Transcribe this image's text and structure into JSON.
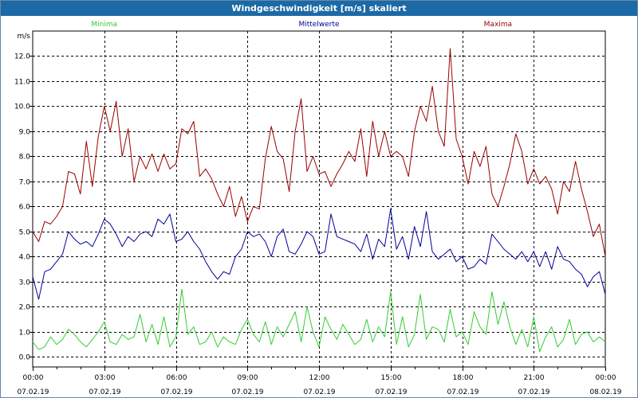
{
  "window": {
    "title": "Windgeschwindigkeit [m/s] skaliert"
  },
  "chart_data": {
    "type": "line",
    "title": "Windgeschwindigkeit [m/s] skaliert",
    "ylabel": "m/s",
    "xlabel": "",
    "ylim": [
      -0.4,
      13.0
    ],
    "xlim": [
      0,
      24
    ],
    "y_ticks": [
      0.0,
      1.0,
      2.0,
      3.0,
      4.0,
      5.0,
      6.0,
      7.0,
      8.0,
      9.0,
      10.0,
      11.0,
      12.0
    ],
    "y_tick_labels": [
      "0.0",
      "1.0",
      "2.0",
      "3.0",
      "4.0",
      "5.0",
      "6.0",
      "7.0",
      "8.0",
      "9.0",
      "10.0",
      "11.0",
      "12.0"
    ],
    "x_ticks": [
      0,
      3,
      6,
      9,
      12,
      15,
      18,
      21,
      24
    ],
    "x_tick_times": [
      "00:00",
      "03:00",
      "06:00",
      "09:00",
      "12:00",
      "15:00",
      "18:00",
      "21:00",
      "00:00"
    ],
    "x_tick_dates": [
      "07.02.19",
      "07.02.19",
      "07.02.19",
      "07.02.19",
      "07.02.19",
      "07.02.19",
      "07.02.19",
      "07.02.19",
      "08.02.19"
    ],
    "grid": true,
    "legend_position": "top",
    "series": [
      {
        "name": "Minima",
        "color": "#33cc33",
        "x": [
          0.0,
          0.25,
          0.5,
          0.75,
          1.0,
          1.25,
          1.5,
          1.75,
          2.0,
          2.25,
          2.5,
          2.75,
          3.0,
          3.25,
          3.5,
          3.75,
          4.0,
          4.25,
          4.5,
          4.75,
          5.0,
          5.25,
          5.5,
          5.75,
          6.0,
          6.25,
          6.5,
          6.75,
          7.0,
          7.25,
          7.5,
          7.75,
          8.0,
          8.25,
          8.5,
          8.75,
          9.0,
          9.25,
          9.5,
          9.75,
          10.0,
          10.25,
          10.5,
          10.75,
          11.0,
          11.25,
          11.5,
          11.75,
          12.0,
          12.25,
          12.5,
          12.75,
          13.0,
          13.25,
          13.5,
          13.75,
          14.0,
          14.25,
          14.5,
          14.75,
          15.0,
          15.25,
          15.5,
          15.75,
          16.0,
          16.25,
          16.5,
          16.75,
          17.0,
          17.25,
          17.5,
          17.75,
          18.0,
          18.25,
          18.5,
          18.75,
          19.0,
          19.25,
          19.5,
          19.75,
          20.0,
          20.25,
          20.5,
          20.75,
          21.0,
          21.25,
          21.5,
          21.75,
          22.0,
          22.25,
          22.5,
          22.75,
          23.0,
          23.25,
          23.5,
          23.75,
          24.0
        ],
        "values": [
          0.6,
          0.3,
          0.4,
          0.8,
          0.5,
          0.7,
          1.1,
          0.9,
          0.6,
          0.4,
          0.7,
          1.0,
          1.4,
          0.6,
          0.5,
          0.9,
          0.7,
          0.8,
          1.7,
          0.6,
          1.3,
          0.5,
          1.6,
          0.4,
          0.8,
          2.7,
          0.9,
          1.2,
          0.5,
          0.6,
          1.0,
          0.4,
          0.8,
          0.6,
          0.5,
          1.1,
          1.5,
          0.9,
          0.6,
          1.4,
          0.5,
          1.2,
          0.8,
          1.3,
          1.8,
          0.6,
          2.0,
          1.0,
          0.4,
          1.6,
          1.1,
          0.7,
          1.3,
          0.9,
          0.5,
          0.7,
          1.5,
          0.6,
          1.2,
          0.8,
          2.6,
          0.5,
          1.6,
          0.4,
          0.9,
          2.5,
          0.7,
          1.2,
          1.1,
          0.6,
          1.9,
          0.8,
          1.0,
          0.5,
          1.8,
          1.2,
          0.9,
          2.6,
          1.3,
          2.2,
          1.2,
          0.5,
          1.1,
          0.4,
          1.6,
          0.2,
          0.8,
          1.2,
          0.4,
          0.7,
          1.5,
          0.5,
          0.9,
          1.0,
          0.6,
          0.8,
          0.6
        ]
      },
      {
        "name": "Mittelwerte",
        "color": "#000099",
        "x": [
          0.0,
          0.25,
          0.5,
          0.75,
          1.0,
          1.25,
          1.5,
          1.75,
          2.0,
          2.25,
          2.5,
          2.75,
          3.0,
          3.25,
          3.5,
          3.75,
          4.0,
          4.25,
          4.5,
          4.75,
          5.0,
          5.25,
          5.5,
          5.75,
          6.0,
          6.25,
          6.5,
          6.75,
          7.0,
          7.25,
          7.5,
          7.75,
          8.0,
          8.25,
          8.5,
          8.75,
          9.0,
          9.25,
          9.5,
          9.75,
          10.0,
          10.25,
          10.5,
          10.75,
          11.0,
          11.25,
          11.5,
          11.75,
          12.0,
          12.25,
          12.5,
          12.75,
          13.0,
          13.25,
          13.5,
          13.75,
          14.0,
          14.25,
          14.5,
          14.75,
          15.0,
          15.25,
          15.5,
          15.75,
          16.0,
          16.25,
          16.5,
          16.75,
          17.0,
          17.25,
          17.5,
          17.75,
          18.0,
          18.25,
          18.5,
          18.75,
          19.0,
          19.25,
          19.5,
          19.75,
          20.0,
          20.25,
          20.5,
          20.75,
          21.0,
          21.25,
          21.5,
          21.75,
          22.0,
          22.25,
          22.5,
          22.75,
          23.0,
          23.25,
          23.5,
          23.75,
          24.0
        ],
        "values": [
          3.2,
          2.3,
          3.4,
          3.5,
          3.8,
          4.1,
          5.0,
          4.7,
          4.5,
          4.6,
          4.4,
          4.9,
          5.5,
          5.3,
          4.9,
          4.4,
          4.8,
          4.6,
          4.9,
          5.0,
          4.8,
          5.5,
          5.3,
          5.7,
          4.6,
          4.7,
          5.0,
          4.6,
          4.3,
          3.8,
          3.4,
          3.1,
          3.4,
          3.3,
          4.0,
          4.3,
          5.0,
          4.8,
          4.9,
          4.6,
          4.0,
          4.8,
          5.1,
          4.2,
          4.1,
          4.5,
          5.0,
          4.8,
          4.1,
          4.2,
          5.7,
          4.8,
          4.7,
          4.6,
          4.5,
          4.2,
          4.9,
          3.9,
          4.7,
          4.4,
          5.9,
          4.3,
          4.8,
          3.9,
          5.2,
          4.4,
          5.8,
          4.2,
          3.9,
          4.1,
          4.3,
          3.8,
          4.0,
          3.5,
          3.6,
          3.9,
          3.7,
          4.9,
          4.6,
          4.3,
          4.1,
          3.9,
          4.2,
          3.8,
          4.2,
          3.6,
          4.2,
          3.5,
          4.4,
          3.9,
          3.8,
          3.5,
          3.3,
          2.8,
          3.2,
          3.4,
          2.5
        ]
      },
      {
        "name": "Maxima",
        "color": "#990000",
        "x": [
          0.0,
          0.25,
          0.5,
          0.75,
          1.0,
          1.25,
          1.5,
          1.75,
          2.0,
          2.25,
          2.5,
          2.75,
          3.0,
          3.25,
          3.5,
          3.75,
          4.0,
          4.25,
          4.5,
          4.75,
          5.0,
          5.25,
          5.5,
          5.75,
          6.0,
          6.25,
          6.5,
          6.75,
          7.0,
          7.25,
          7.5,
          7.75,
          8.0,
          8.25,
          8.5,
          8.75,
          9.0,
          9.25,
          9.5,
          9.75,
          10.0,
          10.25,
          10.5,
          10.75,
          11.0,
          11.25,
          11.5,
          11.75,
          12.0,
          12.25,
          12.5,
          12.75,
          13.0,
          13.25,
          13.5,
          13.75,
          14.0,
          14.25,
          14.5,
          14.75,
          15.0,
          15.25,
          15.5,
          15.75,
          16.0,
          16.25,
          16.5,
          16.75,
          17.0,
          17.25,
          17.5,
          17.75,
          18.0,
          18.25,
          18.5,
          18.75,
          19.0,
          19.25,
          19.5,
          19.75,
          20.0,
          20.25,
          20.5,
          20.75,
          21.0,
          21.25,
          21.5,
          21.75,
          22.0,
          22.25,
          22.5,
          22.75,
          23.0,
          23.25,
          23.5,
          23.75,
          24.0
        ],
        "values": [
          5.0,
          4.6,
          5.4,
          5.3,
          5.6,
          6.0,
          7.4,
          7.3,
          6.5,
          8.6,
          6.8,
          8.8,
          10.0,
          9.0,
          10.2,
          8.0,
          9.1,
          7.0,
          8.0,
          7.5,
          8.1,
          7.4,
          8.1,
          7.5,
          7.7,
          9.1,
          8.9,
          9.4,
          7.2,
          7.5,
          7.1,
          6.5,
          6.0,
          6.8,
          5.6,
          6.4,
          5.4,
          6.0,
          5.9,
          7.9,
          9.2,
          8.2,
          7.9,
          6.6,
          9.0,
          10.3,
          7.4,
          8.0,
          7.3,
          7.4,
          6.8,
          7.3,
          7.7,
          8.2,
          7.8,
          9.1,
          7.2,
          9.4,
          8.0,
          9.0,
          8.0,
          8.2,
          8.0,
          7.2,
          9.0,
          10.0,
          9.4,
          10.8,
          9.0,
          8.4,
          12.3,
          8.7,
          8.0,
          6.9,
          8.2,
          7.6,
          8.4,
          6.5,
          6.0,
          6.8,
          7.7,
          8.9,
          8.2,
          6.9,
          7.5,
          6.9,
          7.2,
          6.7,
          5.7,
          7.0,
          6.6,
          7.8,
          6.7,
          5.8,
          4.8,
          5.3,
          4.0
        ]
      }
    ]
  }
}
